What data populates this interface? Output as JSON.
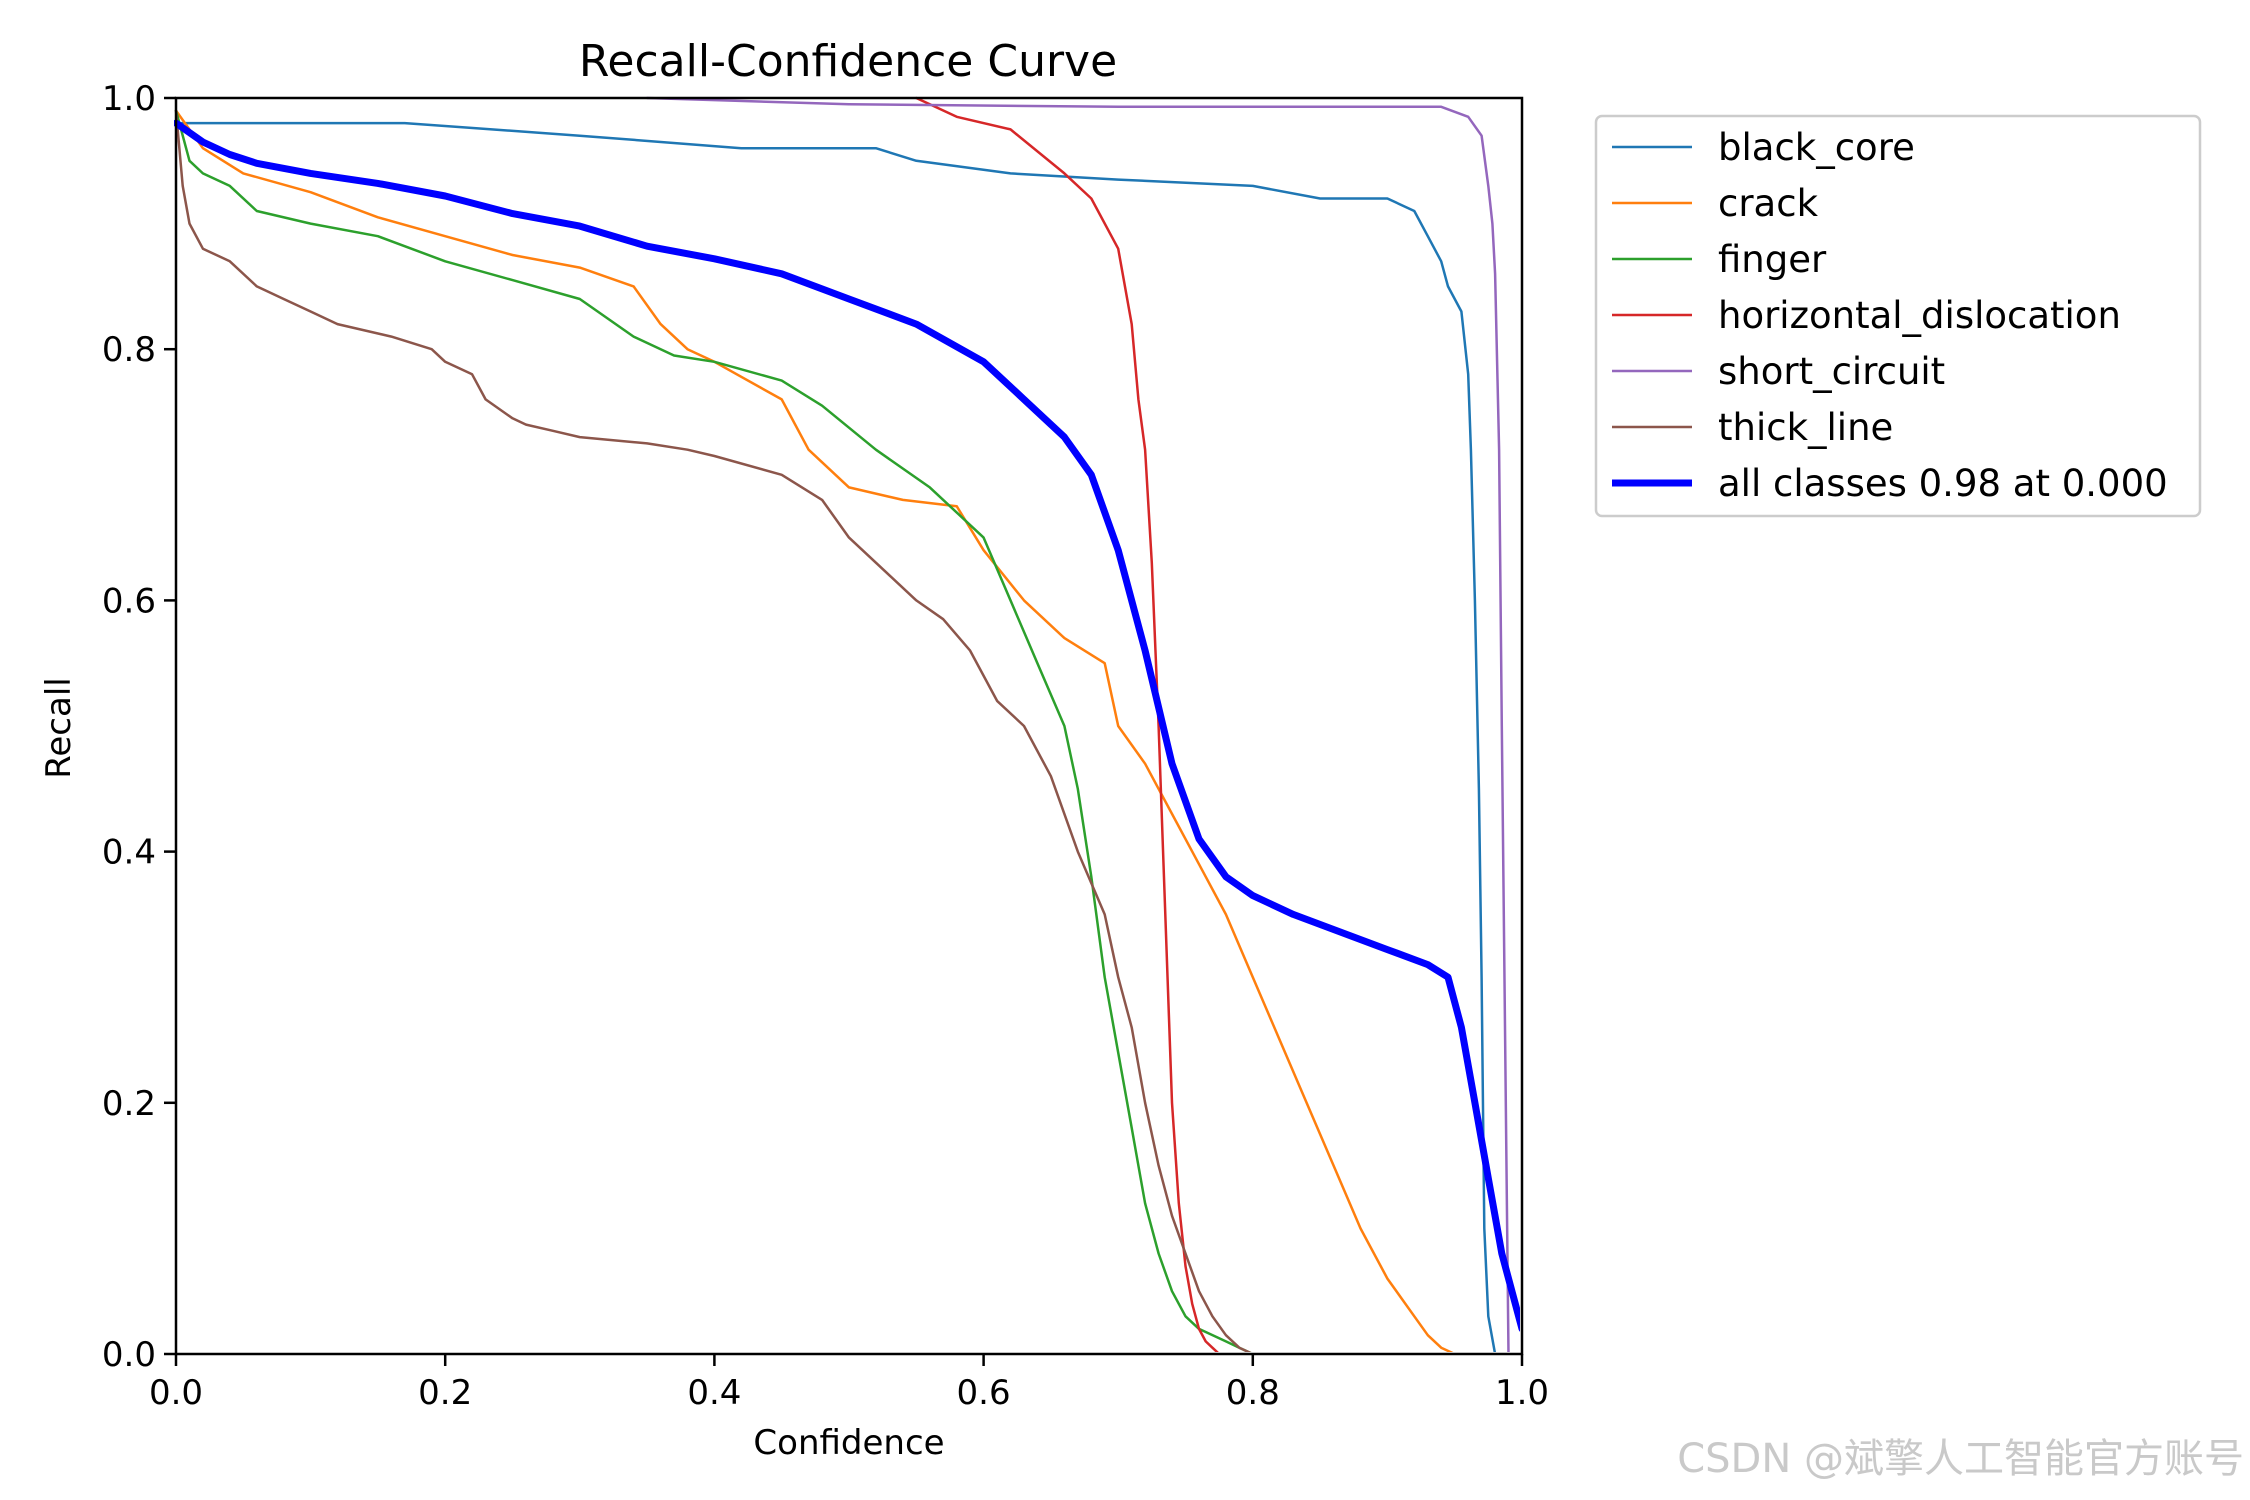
{
  "watermark": "CSDN @斌擎人工智能官方账号",
  "chart_data": {
    "type": "line",
    "title": "Recall-Confidence Curve",
    "xlabel": "Confidence",
    "ylabel": "Recall",
    "xlim": [
      0,
      1
    ],
    "ylim": [
      0,
      1
    ],
    "xticks": [
      0.0,
      0.2,
      0.4,
      0.6,
      0.8,
      1.0
    ],
    "xtick_labels": [
      "0.0",
      "0.2",
      "0.4",
      "0.6",
      "0.8",
      "1.0"
    ],
    "yticks": [
      0.0,
      0.2,
      0.4,
      0.6,
      0.8,
      1.0
    ],
    "ytick_labels": [
      "0.0",
      "0.2",
      "0.4",
      "0.6",
      "0.8",
      "1.0"
    ],
    "grid": false,
    "legend_position": "outside-upper-right",
    "series": [
      {
        "name": "black_core",
        "color": "#1f77b4",
        "width": 2.5,
        "x": [
          0,
          0.005,
          0.17,
          0.3,
          0.42,
          0.52,
          0.55,
          0.62,
          0.7,
          0.8,
          0.85,
          0.9,
          0.92,
          0.93,
          0.94,
          0.945,
          0.955,
          0.96,
          0.962,
          0.965,
          0.968,
          0.97,
          0.972,
          0.975,
          0.98
        ],
        "y": [
          0.98,
          0.98,
          0.98,
          0.97,
          0.96,
          0.96,
          0.95,
          0.94,
          0.935,
          0.93,
          0.92,
          0.92,
          0.91,
          0.89,
          0.87,
          0.85,
          0.83,
          0.78,
          0.72,
          0.6,
          0.45,
          0.3,
          0.1,
          0.03,
          0.0
        ]
      },
      {
        "name": "crack",
        "color": "#ff7f0e",
        "width": 2.5,
        "x": [
          0,
          0.02,
          0.05,
          0.1,
          0.15,
          0.2,
          0.25,
          0.3,
          0.34,
          0.36,
          0.38,
          0.4,
          0.45,
          0.47,
          0.5,
          0.54,
          0.58,
          0.6,
          0.63,
          0.66,
          0.69,
          0.7,
          0.72,
          0.74,
          0.76,
          0.78,
          0.8,
          0.82,
          0.84,
          0.86,
          0.88,
          0.9,
          0.92,
          0.93,
          0.94,
          0.95
        ],
        "y": [
          0.99,
          0.96,
          0.94,
          0.925,
          0.905,
          0.89,
          0.875,
          0.865,
          0.85,
          0.82,
          0.8,
          0.79,
          0.76,
          0.72,
          0.69,
          0.68,
          0.675,
          0.64,
          0.6,
          0.57,
          0.55,
          0.5,
          0.47,
          0.43,
          0.39,
          0.35,
          0.3,
          0.25,
          0.2,
          0.15,
          0.1,
          0.06,
          0.03,
          0.015,
          0.005,
          0.0
        ]
      },
      {
        "name": "finger",
        "color": "#2ca02c",
        "width": 2.5,
        "x": [
          0,
          0.01,
          0.02,
          0.04,
          0.06,
          0.1,
          0.15,
          0.2,
          0.25,
          0.3,
          0.34,
          0.37,
          0.4,
          0.45,
          0.48,
          0.52,
          0.56,
          0.6,
          0.62,
          0.64,
          0.66,
          0.67,
          0.68,
          0.69,
          0.7,
          0.71,
          0.72,
          0.73,
          0.74,
          0.75,
          0.76,
          0.78,
          0.79,
          0.8
        ],
        "y": [
          0.99,
          0.95,
          0.94,
          0.93,
          0.91,
          0.9,
          0.89,
          0.87,
          0.855,
          0.84,
          0.81,
          0.795,
          0.79,
          0.775,
          0.755,
          0.72,
          0.69,
          0.65,
          0.6,
          0.55,
          0.5,
          0.45,
          0.38,
          0.3,
          0.24,
          0.18,
          0.12,
          0.08,
          0.05,
          0.03,
          0.02,
          0.01,
          0.005,
          0.0
        ]
      },
      {
        "name": "horizontal_dislocation",
        "color": "#d62728",
        "width": 2.5,
        "x": [
          0.55,
          0.58,
          0.62,
          0.66,
          0.68,
          0.7,
          0.71,
          0.715,
          0.72,
          0.725,
          0.73,
          0.735,
          0.74,
          0.745,
          0.75,
          0.755,
          0.76,
          0.765,
          0.77,
          0.775,
          0.78,
          0.8
        ],
        "y": [
          1.0,
          0.985,
          0.975,
          0.94,
          0.92,
          0.88,
          0.82,
          0.76,
          0.72,
          0.63,
          0.5,
          0.35,
          0.2,
          0.12,
          0.07,
          0.04,
          0.02,
          0.01,
          0.005,
          0.0,
          0.0,
          0.0
        ]
      },
      {
        "name": "short_circuit",
        "color": "#9467bd",
        "width": 2.5,
        "x": [
          0.35,
          0.5,
          0.7,
          0.85,
          0.94,
          0.96,
          0.97,
          0.975,
          0.978,
          0.98,
          0.983,
          0.985,
          0.988,
          0.99,
          1.0
        ],
        "y": [
          1.0,
          0.995,
          0.993,
          0.993,
          0.993,
          0.985,
          0.97,
          0.93,
          0.9,
          0.86,
          0.72,
          0.5,
          0.2,
          0.0,
          0.0
        ]
      },
      {
        "name": "thick_line",
        "color": "#8c564b",
        "width": 2.5,
        "x": [
          0,
          0.005,
          0.01,
          0.02,
          0.04,
          0.06,
          0.08,
          0.1,
          0.12,
          0.16,
          0.19,
          0.2,
          0.22,
          0.23,
          0.25,
          0.26,
          0.28,
          0.3,
          0.35,
          0.38,
          0.4,
          0.45,
          0.48,
          0.5,
          0.53,
          0.55,
          0.57,
          0.59,
          0.61,
          0.63,
          0.65,
          0.67,
          0.69,
          0.7,
          0.71,
          0.72,
          0.73,
          0.74,
          0.75,
          0.76,
          0.77,
          0.78,
          0.79,
          0.8
        ],
        "y": [
          0.99,
          0.93,
          0.9,
          0.88,
          0.87,
          0.85,
          0.84,
          0.83,
          0.82,
          0.81,
          0.8,
          0.79,
          0.78,
          0.76,
          0.745,
          0.74,
          0.735,
          0.73,
          0.725,
          0.72,
          0.715,
          0.7,
          0.68,
          0.65,
          0.62,
          0.6,
          0.585,
          0.56,
          0.52,
          0.5,
          0.46,
          0.4,
          0.35,
          0.3,
          0.26,
          0.2,
          0.15,
          0.11,
          0.08,
          0.05,
          0.03,
          0.015,
          0.005,
          0.0
        ]
      },
      {
        "name": "all classes 0.98 at 0.000",
        "color": "#0000ff",
        "width": 7,
        "x": [
          0,
          0.02,
          0.04,
          0.06,
          0.1,
          0.15,
          0.2,
          0.25,
          0.3,
          0.35,
          0.4,
          0.45,
          0.5,
          0.55,
          0.6,
          0.63,
          0.66,
          0.68,
          0.7,
          0.72,
          0.74,
          0.76,
          0.78,
          0.8,
          0.83,
          0.86,
          0.9,
          0.93,
          0.945,
          0.955,
          0.965,
          0.975,
          0.985,
          0.995,
          1.0
        ],
        "y": [
          0.98,
          0.965,
          0.955,
          0.948,
          0.94,
          0.932,
          0.922,
          0.908,
          0.898,
          0.882,
          0.872,
          0.86,
          0.84,
          0.82,
          0.79,
          0.76,
          0.73,
          0.7,
          0.64,
          0.56,
          0.47,
          0.41,
          0.38,
          0.365,
          0.35,
          0.338,
          0.322,
          0.31,
          0.3,
          0.26,
          0.2,
          0.14,
          0.08,
          0.04,
          0.02
        ]
      }
    ]
  }
}
